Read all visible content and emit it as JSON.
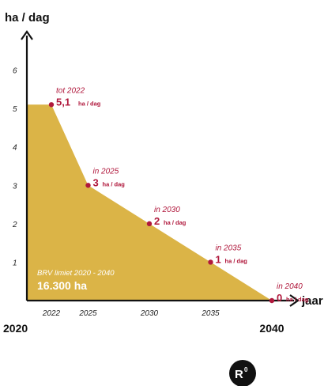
{
  "chart_data": {
    "type": "area",
    "ylabel": "ha / dag",
    "xlabel": "jaar",
    "ylim": [
      0,
      7
    ],
    "xlim": [
      2020,
      2042
    ],
    "yticks": [
      "1",
      "2",
      "3",
      "4",
      "5",
      "6"
    ],
    "xticks_small": [
      "2022",
      "2025",
      "2030",
      "2035"
    ],
    "xticks_big": [
      "2020",
      "2040"
    ],
    "x": [
      2020,
      2022,
      2025,
      2030,
      2035,
      2040
    ],
    "values": [
      5.1,
      5.1,
      3,
      2,
      1,
      0
    ],
    "annotations": [
      {
        "prefix": "tot 2022",
        "value": "5,1",
        "unit": "ha / dag"
      },
      {
        "prefix": "in 2025",
        "value": "3",
        "unit": "ha / dag"
      },
      {
        "prefix": "in 2030",
        "value": "2",
        "unit": "ha / dag"
      },
      {
        "prefix": "in 2035",
        "value": "1",
        "unit": "ha / dag"
      },
      {
        "prefix": "in 2040",
        "value": "0",
        "unit": "ha / dag"
      }
    ],
    "area_label": "BRV limiet 2020 - 2040",
    "area_value": "16.300 ha",
    "fill_color": "#dbb447",
    "point_color": "#b0183c",
    "grid": false
  },
  "logo": {
    "text": "R",
    "sup": "0",
    "color": "#111111"
  }
}
